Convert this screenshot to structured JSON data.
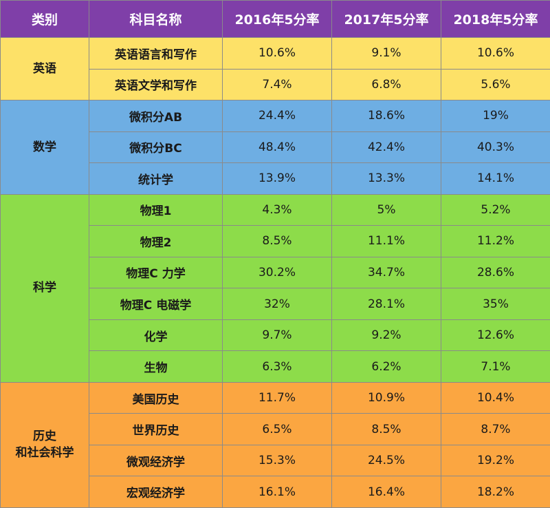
{
  "headers": [
    "类别",
    "科目名称",
    "2016年5分率",
    "2017年5分率",
    "2018年5分率"
  ],
  "groups": [
    {
      "name_lines": [
        "英语"
      ],
      "color": "#fde168",
      "rows": [
        {
          "subject": "英语语言和写作",
          "y2016": "10.6%",
          "y2017": "9.1%",
          "y2018": "10.6%"
        },
        {
          "subject": "英语文学和写作",
          "y2016": "7.4%",
          "y2017": "6.8%",
          "y2018": "5.6%"
        }
      ]
    },
    {
      "name_lines": [
        "数学"
      ],
      "color": "#6eaee3",
      "rows": [
        {
          "subject": "微积分AB",
          "y2016": "24.4%",
          "y2017": "18.6%",
          "y2018": "19%"
        },
        {
          "subject": "微积分BC",
          "y2016": "48.4%",
          "y2017": "42.4%",
          "y2018": "40.3%"
        },
        {
          "subject": "统计学",
          "y2016": "13.9%",
          "y2017": "13.3%",
          "y2018": "14.1%"
        }
      ]
    },
    {
      "name_lines": [
        "科学"
      ],
      "color": "#8ddc4a",
      "rows": [
        {
          "subject": "物理1",
          "y2016": "4.3%",
          "y2017": "5%",
          "y2018": "5.2%"
        },
        {
          "subject": "物理2",
          "y2016": "8.5%",
          "y2017": "11.1%",
          "y2018": "11.2%"
        },
        {
          "subject": "物理C 力学",
          "y2016": "30.2%",
          "y2017": "34.7%",
          "y2018": "28.6%"
        },
        {
          "subject": "物理C 电磁学",
          "y2016": "32%",
          "y2017": "28.1%",
          "y2018": "35%"
        },
        {
          "subject": "化学",
          "y2016": "9.7%",
          "y2017": "9.2%",
          "y2018": "12.6%"
        },
        {
          "subject": "生物",
          "y2016": "6.3%",
          "y2017": "6.2%",
          "y2018": "7.1%"
        }
      ]
    },
    {
      "name_lines": [
        "历史",
        "和社会科学"
      ],
      "color": "#fba641",
      "rows": [
        {
          "subject": "美国历史",
          "y2016": "11.7%",
          "y2017": "10.9%",
          "y2018": "10.4%"
        },
        {
          "subject": "世界历史",
          "y2016": "6.5%",
          "y2017": "8.5%",
          "y2018": "8.7%"
        },
        {
          "subject": "微观经济学",
          "y2016": "15.3%",
          "y2017": "24.5%",
          "y2018": "19.2%"
        },
        {
          "subject": "宏观经济学",
          "y2016": "16.1%",
          "y2017": "16.4%",
          "y2018": "18.2%"
        }
      ]
    }
  ]
}
